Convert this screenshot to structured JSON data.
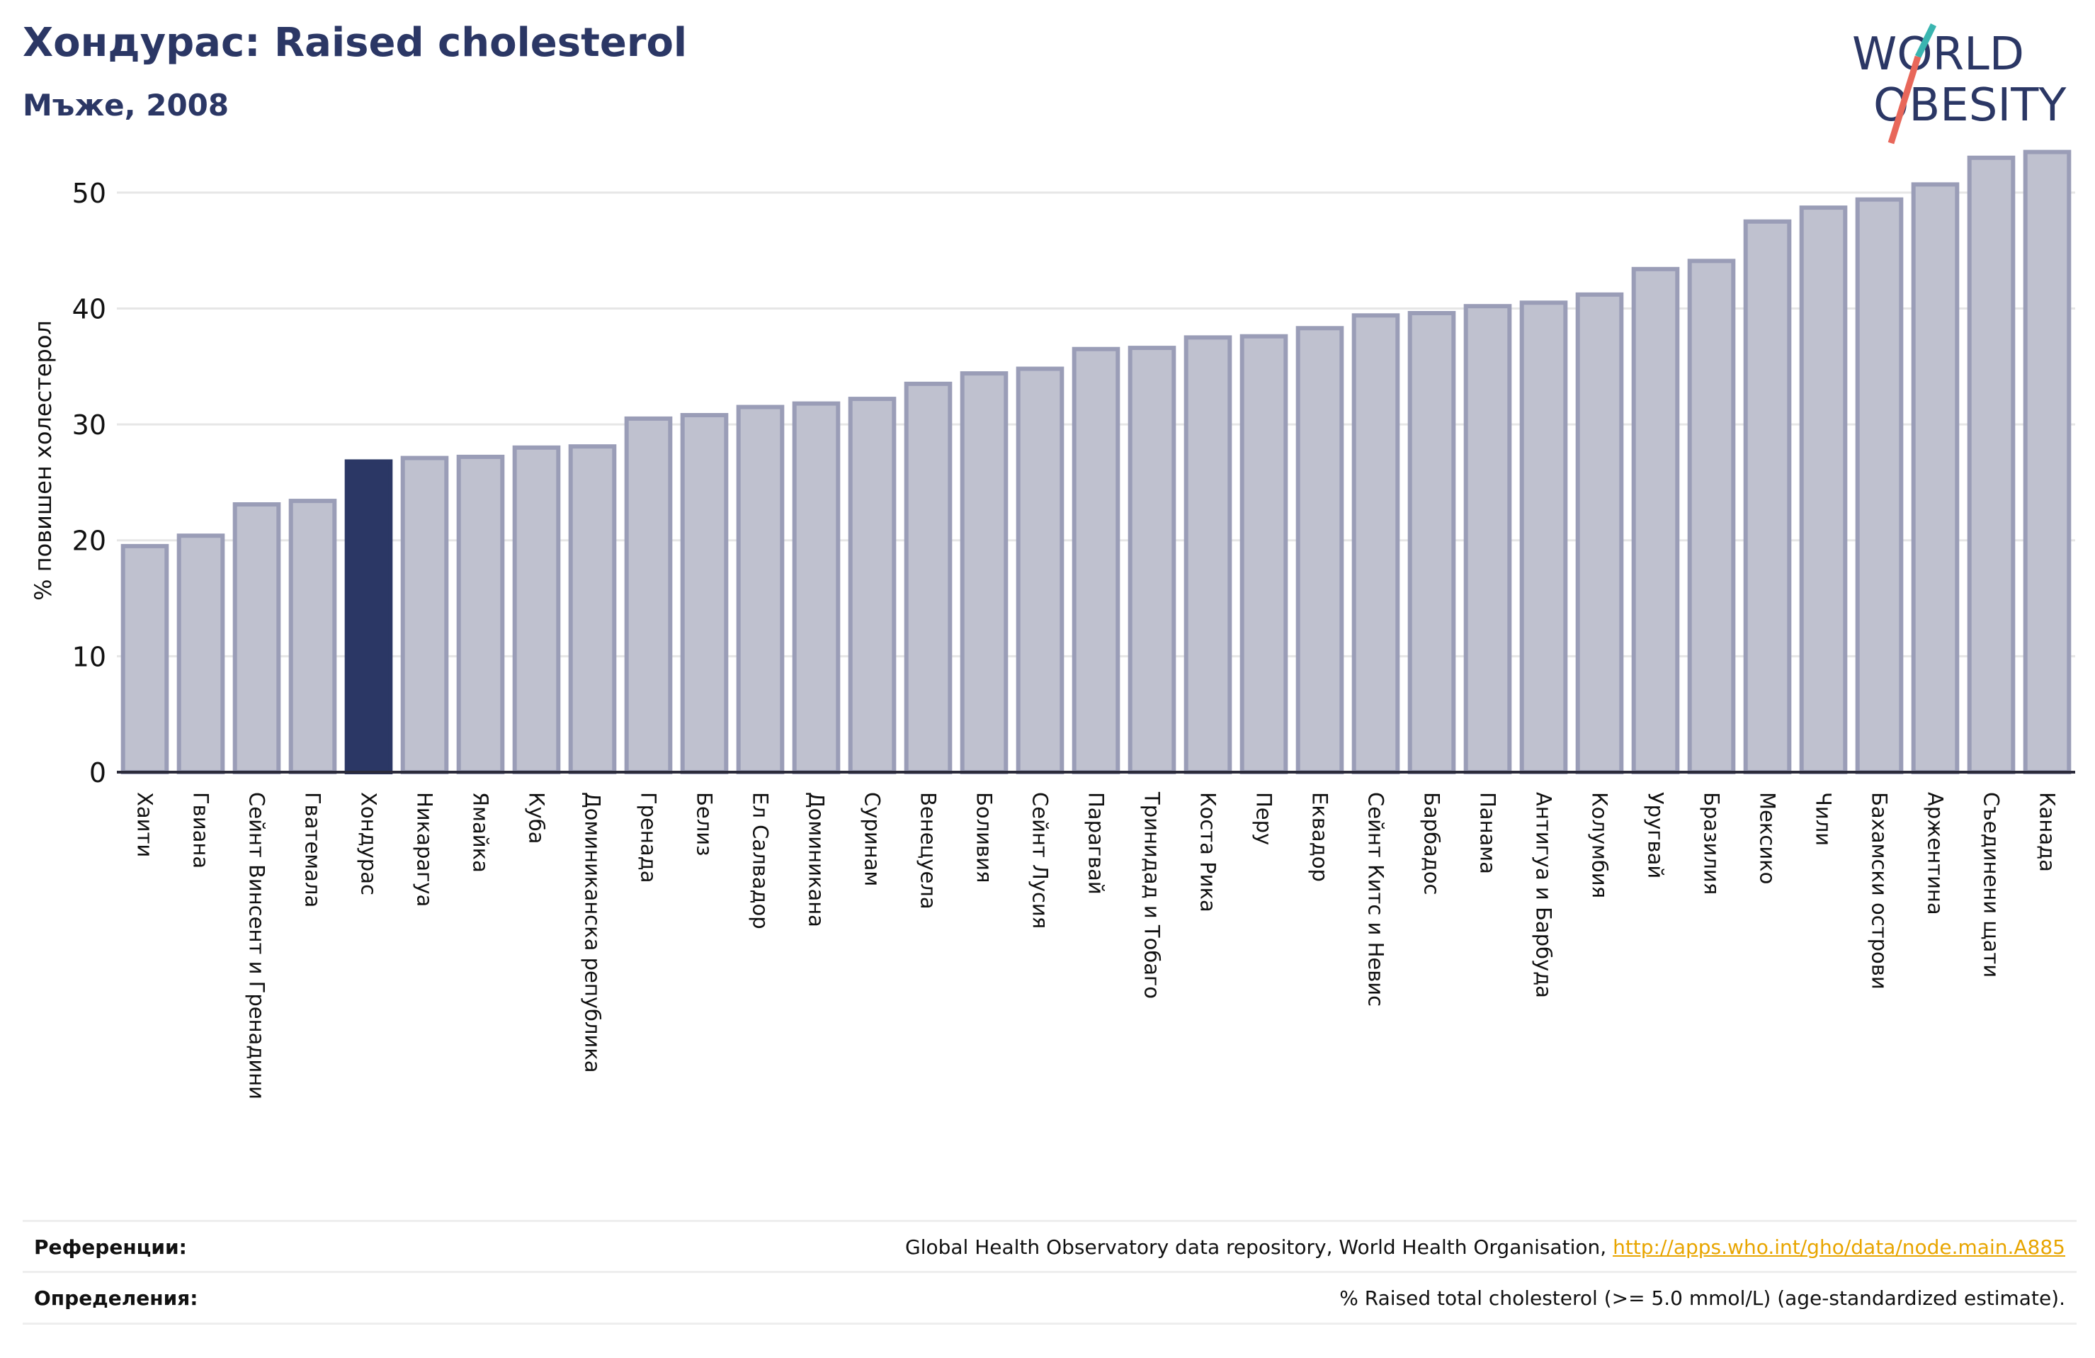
{
  "header": {
    "title": "Хондурас: Raised cholesterol",
    "subtitle": "Мъже, 2008"
  },
  "logo": {
    "line1": "WORLD",
    "line2": "OBESITY"
  },
  "colors": {
    "bar": "#bfc1cf",
    "bar_edge": "#9a9db7",
    "highlight": "#2b3765",
    "text": "#2b3765",
    "grid": "#e6e6e6",
    "link": "#e8a500",
    "logo_teal": "#3ab5b0",
    "logo_red": "#e8675a"
  },
  "chart_data": {
    "type": "bar",
    "title": "Хондурас: Raised cholesterol",
    "subtitle": "Мъже, 2008",
    "ylabel": "% повишен холестерол",
    "xlabel": "",
    "ylim": [
      0,
      55
    ],
    "yticks": [
      0,
      10,
      20,
      30,
      40,
      50
    ],
    "grid": true,
    "highlight": "Хондурас",
    "categories": [
      "Хаити",
      "Гвиана",
      "Сейнт Винсент и Гренадини",
      "Гватемала",
      "Хондурас",
      "Никарагуа",
      "Ямайка",
      "Куба",
      "Доминиканска република",
      "Гренада",
      "Белиз",
      "Ел Салвадор",
      "Доминикана",
      "Суринам",
      "Венецуела",
      "Боливия",
      "Сейнт Лусия",
      "Парагвай",
      "Тринидад и Тобаго",
      "Коста Рика",
      "Перу",
      "Еквадор",
      "Сейнт Китс и Невис",
      "Барбадос",
      "Панама",
      "Антигуа и Барбуда",
      "Колумбия",
      "Уругвай",
      "Бразилия",
      "Мексико",
      "Чили",
      "Бахамски острови",
      "Аржентина",
      "Съединени щати",
      "Канада"
    ],
    "values": [
      19.5,
      20.4,
      23.1,
      23.4,
      26.8,
      27.1,
      27.2,
      28.0,
      28.1,
      30.5,
      30.8,
      31.5,
      31.8,
      32.2,
      33.5,
      34.4,
      34.8,
      36.5,
      36.6,
      37.5,
      37.6,
      38.3,
      39.4,
      39.6,
      40.2,
      40.5,
      41.2,
      43.4,
      44.1,
      47.5,
      48.7,
      49.4,
      50.7,
      53.0,
      53.5
    ]
  },
  "footer": {
    "references_label": "Референции:",
    "references_text": "Global Health Observatory data repository, World Health Organisation, ",
    "references_link": "http://apps.who.int/gho/data/node.main.A885",
    "definitions_label": "Определения:",
    "definitions_text": "% Raised total cholesterol (>= 5.0 mmol/L) (age-standardized estimate)."
  }
}
